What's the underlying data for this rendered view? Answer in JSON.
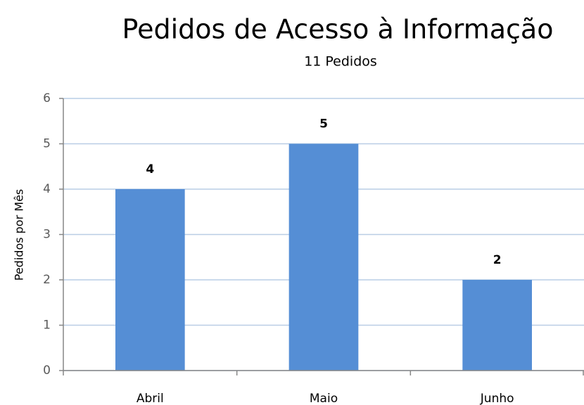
{
  "chart_data": {
    "type": "bar",
    "title": "Pedidos de Acesso à Informação",
    "subtitle": "11 Pedidos",
    "y_label": "Pedidos por Mês",
    "categories": [
      "Abril",
      "Maio",
      "Junho"
    ],
    "values": [
      4,
      5,
      2
    ],
    "color": "#558ed5",
    "ylim": [
      0,
      6
    ],
    "yticks": [
      0,
      1,
      2,
      3,
      4,
      5,
      6
    ],
    "grid": true
  }
}
